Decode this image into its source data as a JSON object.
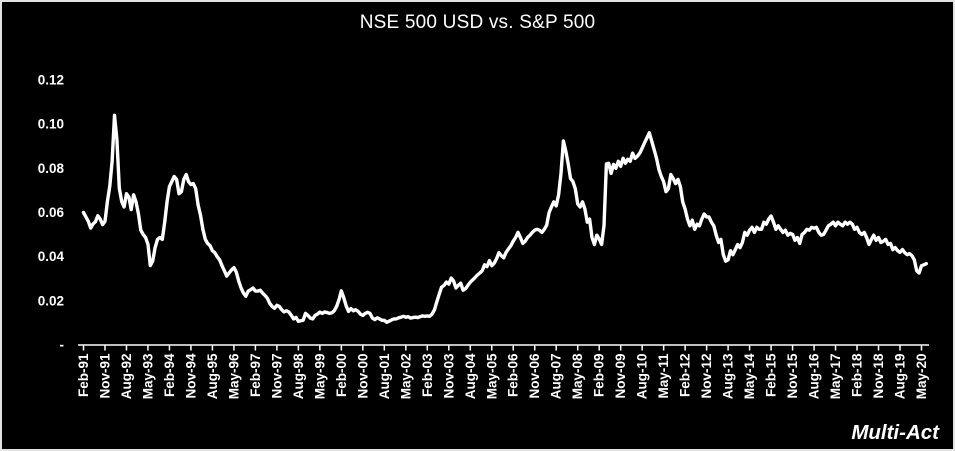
{
  "watermark": "Multi-Act",
  "frame": {
    "background": "#000000",
    "border_color": "#e2e2e2"
  },
  "chart_data": {
    "type": "line",
    "title": "NSE 500 USD vs. S&P 500",
    "line_color": "#ffffff",
    "text_color": "#ffffff",
    "axis_color": "#ffffff",
    "background": "#000000",
    "grid": false,
    "legend": "none",
    "x_unit": "month",
    "ylim": [
      0,
      0.13
    ],
    "y_ticks": [
      {
        "label": "0.12",
        "value": 0.12
      },
      {
        "label": "0.10",
        "value": 0.1
      },
      {
        "label": "0.08",
        "value": 0.08
      },
      {
        "label": "0.06",
        "value": 0.06
      },
      {
        "label": "0.04",
        "value": 0.04
      },
      {
        "label": "0.02",
        "value": 0.02
      },
      {
        "label": "-",
        "value": 0
      }
    ],
    "x_tick_labels": [
      "Feb-91",
      "Nov-91",
      "Aug-92",
      "May-93",
      "Feb-94",
      "Nov-94",
      "Aug-95",
      "May-96",
      "Feb-97",
      "Nov-97",
      "Aug-98",
      "May-99",
      "Feb-00",
      "Nov-00",
      "Aug-01",
      "May-02",
      "Feb-03",
      "Nov-03",
      "Aug-04",
      "May-05",
      "Feb-06",
      "Nov-06",
      "Aug-07",
      "May-08",
      "Feb-09",
      "Nov-09",
      "Aug-10",
      "May-11",
      "Feb-12",
      "Nov-12",
      "Aug-13",
      "May-14",
      "Feb-15",
      "Nov-15",
      "Aug-16",
      "May-17",
      "Feb-18",
      "Nov-18",
      "Aug-19",
      "May-20"
    ],
    "values": [
      0.06,
      0.058,
      0.056,
      0.053,
      0.0548,
      0.0558,
      0.0585,
      0.057,
      0.0545,
      0.056,
      0.065,
      0.072,
      0.083,
      0.104,
      0.093,
      0.071,
      0.065,
      0.0625,
      0.0685,
      0.067,
      0.0613,
      0.068,
      0.0648,
      0.0595,
      0.052,
      0.05,
      0.0487,
      0.0455,
      0.036,
      0.038,
      0.0441,
      0.0478,
      0.0487,
      0.0478,
      0.0556,
      0.065,
      0.0717,
      0.074,
      0.0763,
      0.075,
      0.0685,
      0.0694,
      0.075,
      0.0772,
      0.074,
      0.0727,
      0.0731,
      0.0708,
      0.0634,
      0.0588,
      0.0524,
      0.0478,
      0.046,
      0.045,
      0.0427,
      0.0418,
      0.04,
      0.0386,
      0.0359,
      0.0336,
      0.0312,
      0.0326,
      0.034,
      0.035,
      0.033,
      0.029,
      0.0258,
      0.0235,
      0.0221,
      0.0244,
      0.025,
      0.0258,
      0.0244,
      0.0244,
      0.0248,
      0.0235,
      0.0225,
      0.0212,
      0.0189,
      0.0175,
      0.0166,
      0.018,
      0.0175,
      0.016,
      0.015,
      0.0155,
      0.015,
      0.0135,
      0.0118,
      0.0125,
      0.0107,
      0.011,
      0.0112,
      0.0143,
      0.0134,
      0.0122,
      0.0118,
      0.0134,
      0.014,
      0.0149,
      0.0143,
      0.015,
      0.0147,
      0.0143,
      0.0146,
      0.0155,
      0.0175,
      0.0205,
      0.0245,
      0.0215,
      0.0178,
      0.0152,
      0.0165,
      0.0155,
      0.016,
      0.0152,
      0.014,
      0.0134,
      0.0143,
      0.0148,
      0.0143,
      0.0122,
      0.0115,
      0.0123,
      0.0118,
      0.0112,
      0.0112,
      0.0103,
      0.0108,
      0.0113,
      0.0118,
      0.0118,
      0.0123,
      0.0126,
      0.013,
      0.0126,
      0.0128,
      0.0122,
      0.0124,
      0.0126,
      0.0124,
      0.0128,
      0.0132,
      0.013,
      0.0132,
      0.013,
      0.014,
      0.016,
      0.0195,
      0.023,
      0.0262,
      0.027,
      0.0285,
      0.0276,
      0.0303,
      0.029,
      0.0258,
      0.027,
      0.028,
      0.0248,
      0.0255,
      0.027,
      0.0285,
      0.0295,
      0.0305,
      0.0317,
      0.0326,
      0.0336,
      0.0363,
      0.0355,
      0.0382,
      0.0359,
      0.037,
      0.039,
      0.0418,
      0.0405,
      0.0395,
      0.042,
      0.0435,
      0.045,
      0.047,
      0.0487,
      0.051,
      0.0487,
      0.046,
      0.047,
      0.0487,
      0.0497,
      0.051,
      0.052,
      0.0524,
      0.052,
      0.051,
      0.0524,
      0.0543,
      0.06,
      0.0625,
      0.0648,
      0.063,
      0.068,
      0.0777,
      0.0924,
      0.0878,
      0.082,
      0.0754,
      0.074,
      0.0708,
      0.0639,
      0.0625,
      0.0648,
      0.0616,
      0.0556,
      0.057,
      0.0487,
      0.0455,
      0.0497,
      0.048,
      0.0455,
      0.054,
      0.082,
      0.0823,
      0.0777,
      0.0818,
      0.08,
      0.0832,
      0.0809,
      0.0846,
      0.0823,
      0.0841,
      0.0832,
      0.0869,
      0.0845,
      0.0855,
      0.0869,
      0.0892,
      0.0915,
      0.0938,
      0.0961,
      0.0924,
      0.0885,
      0.0846,
      0.0795,
      0.0763,
      0.074,
      0.0694,
      0.0708,
      0.0772,
      0.0754,
      0.0731,
      0.075,
      0.0717,
      0.0648,
      0.0616,
      0.057,
      0.054,
      0.0565,
      0.0524,
      0.0547,
      0.054,
      0.057,
      0.0593,
      0.058,
      0.058,
      0.0556,
      0.054,
      0.0497,
      0.0464,
      0.0478,
      0.0409,
      0.038,
      0.0386,
      0.0427,
      0.0409,
      0.0432,
      0.0455,
      0.0441,
      0.0464,
      0.051,
      0.0497,
      0.052,
      0.0533,
      0.051,
      0.0533,
      0.0524,
      0.0524,
      0.0556,
      0.0547,
      0.057,
      0.0584,
      0.0556,
      0.0524,
      0.054,
      0.0524,
      0.051,
      0.052,
      0.0497,
      0.0506,
      0.0501,
      0.0474,
      0.0487,
      0.046,
      0.0501,
      0.051,
      0.0524,
      0.052,
      0.0533,
      0.0529,
      0.0533,
      0.051,
      0.0497,
      0.0501,
      0.052,
      0.054,
      0.0547,
      0.0556,
      0.054,
      0.0556,
      0.0547,
      0.054,
      0.0556,
      0.0547,
      0.0556,
      0.0547,
      0.0524,
      0.0533,
      0.051,
      0.0501,
      0.051,
      0.0487,
      0.0455,
      0.0478,
      0.0497,
      0.0474,
      0.0487,
      0.0464,
      0.047,
      0.0478,
      0.0455,
      0.046,
      0.0432,
      0.0441,
      0.0427,
      0.042,
      0.0432,
      0.0418,
      0.0409,
      0.0414,
      0.0405,
      0.0386,
      0.0336,
      0.0326,
      0.0359,
      0.0363,
      0.0368
    ]
  }
}
